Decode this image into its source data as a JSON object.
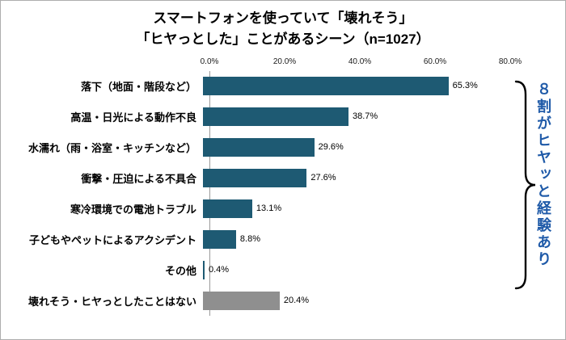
{
  "title": {
    "line1": "スマートフォンを使っていて「壊れそう」",
    "line2": "「ヒヤっとした」ことがあるシーン（n=1027）"
  },
  "chart_data": {
    "type": "bar",
    "orientation": "horizontal",
    "title": "スマートフォンを使っていて「壊れそう」「ヒヤっとした」ことがあるシーン（n=1027）",
    "categories": [
      "落下（地面・階段など）",
      "高温・日光による動作不良",
      "水濡れ（雨・浴室・キッチンなど）",
      "衝撃・圧迫による不具合",
      "寒冷環境での電池トラブル",
      "子どもやペットによるアクシデント",
      "その他",
      "壊れそう・ヒヤっとしたことはない"
    ],
    "values": [
      65.3,
      38.7,
      29.6,
      27.6,
      13.1,
      8.8,
      0.4,
      20.4
    ],
    "value_labels": [
      "65.3%",
      "38.7%",
      "29.6%",
      "27.6%",
      "13.1%",
      "8.8%",
      "0.4%",
      "20.4%"
    ],
    "x_ticks": [
      "0.0%",
      "20.0%",
      "40.0%",
      "60.0%",
      "80.0%"
    ],
    "xlim": [
      0,
      80
    ],
    "grid": "off",
    "legend": "none",
    "bar_colors": [
      "#1e5a73",
      "#1e5a73",
      "#1e5a73",
      "#1e5a73",
      "#1e5a73",
      "#1e5a73",
      "#1e5a73",
      "#8f8f8f"
    ]
  },
  "annotation": {
    "text": "８割がヒヤッと経験あり",
    "color": "#1f5aa8"
  },
  "colors": {
    "bar_primary": "#1e5a73",
    "bar_neutral": "#8f8f8f",
    "annotation_blue": "#1f5aa8",
    "brace": "#000000"
  }
}
